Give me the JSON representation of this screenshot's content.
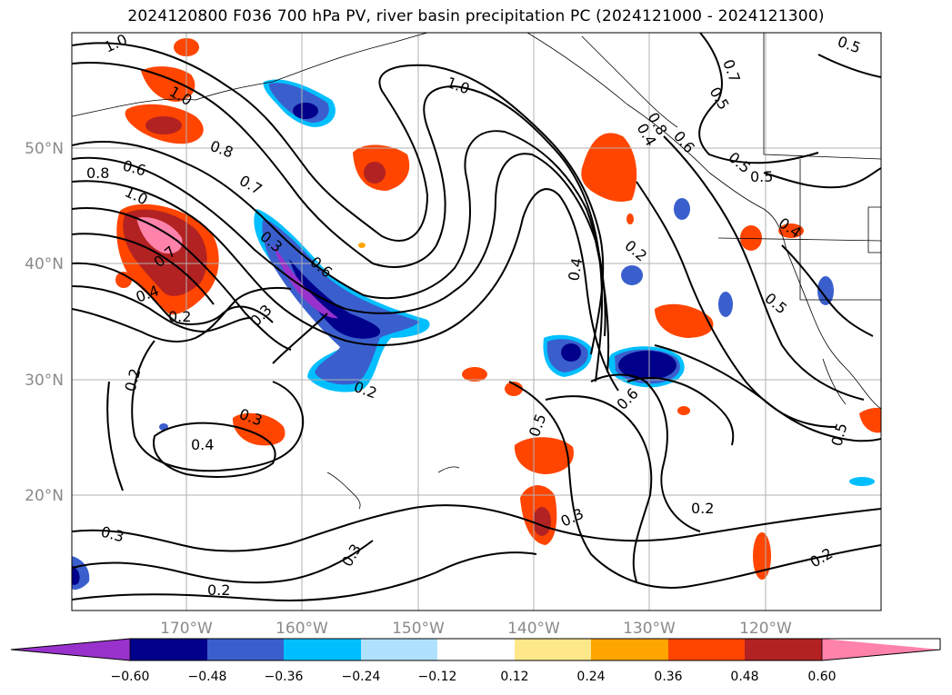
{
  "title": "2024120800 F036 700 hPa PV, river basin precipitation PC (2024121000 - 2024121300)",
  "lat_labels": [
    "50°N",
    "40°N",
    "30°N",
    "20°N"
  ],
  "lon_labels": [
    "170°W",
    "160°W",
    "150°W",
    "140°W",
    "130°W",
    "120°W"
  ],
  "colorbar": {
    "colors": [
      "#9932cc",
      "#00008b",
      "#3a5fcd",
      "#00bfff",
      "#b0e2ff",
      "#ffffff",
      "#ffe88a",
      "#ffa500",
      "#ff4500",
      "#b22222",
      "#ff82ab"
    ],
    "labels": [
      "−0.60",
      "−0.48",
      "−0.36",
      "−0.24",
      "−0.12",
      "0.12",
      "0.24",
      "0.36",
      "0.48",
      "0.60"
    ]
  },
  "contour_labels": [
    "1.0",
    "1.0",
    "1.0",
    "0.8",
    "0.8",
    "0.6",
    "1.0",
    "0.7",
    "0.7",
    "0.4",
    "0.2",
    "0.2",
    "0.3",
    "0.3",
    "0.4",
    "0.3",
    "0.2",
    "0.6",
    "0.5",
    "0.2",
    "0.2",
    "0.4",
    "0.5",
    "0.6",
    "0.5",
    "0.3",
    "0.2",
    "0.3",
    "0.2",
    "0.5",
    "0.4",
    "0.5",
    "0.5",
    "0.5",
    "0.7",
    "0.6",
    "0.8",
    "0.4",
    "0.3"
  ]
}
